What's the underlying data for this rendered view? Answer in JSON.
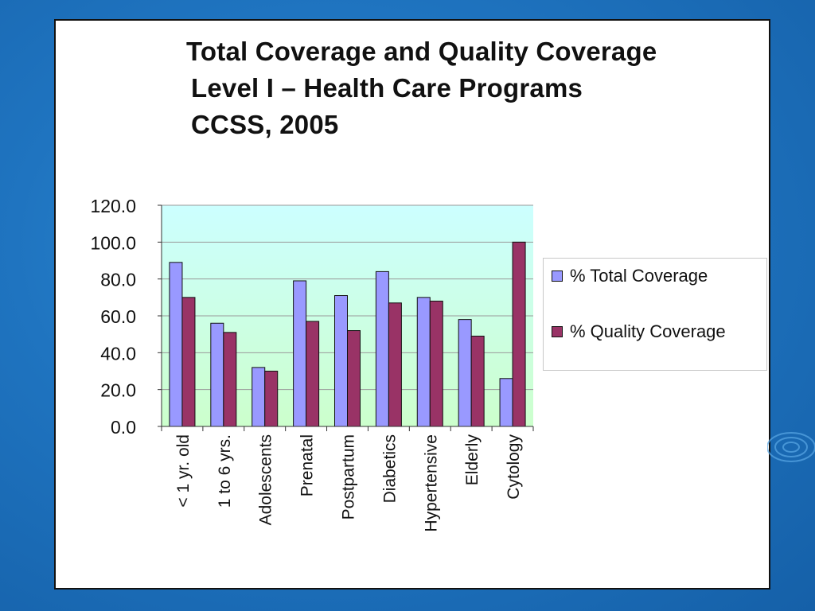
{
  "slide": {
    "title_lines": [
      "Total Coverage and Quality Coverage",
      "Level I – Health Care Programs",
      "CCSS, 2005"
    ]
  },
  "colors": {
    "background": "#1f74c0",
    "total": "#9999ff",
    "quality": "#993366",
    "plot_top": "#ccffff",
    "plot_bottom": "#ccffcc"
  },
  "chart_data": {
    "type": "bar",
    "categories": [
      "< 1 yr. old",
      "1 to 6 yrs.",
      "Adolescents",
      "Prenatal",
      "Postpartum",
      "Diabetics",
      "Hypertensive",
      "Elderly",
      "Cytology"
    ],
    "series": [
      {
        "name": "% Total Coverage",
        "values": [
          89,
          56,
          32,
          79,
          71,
          84,
          70,
          58,
          26
        ]
      },
      {
        "name": "% Quality Coverage",
        "values": [
          70,
          51,
          30,
          57,
          52,
          67,
          68,
          49,
          100
        ]
      }
    ],
    "yticks": [
      "0.0",
      "20.0",
      "40.0",
      "60.0",
      "80.0",
      "100.0",
      "120.0"
    ],
    "ylim": [
      0,
      120
    ],
    "grid": true,
    "legend_position": "right"
  }
}
